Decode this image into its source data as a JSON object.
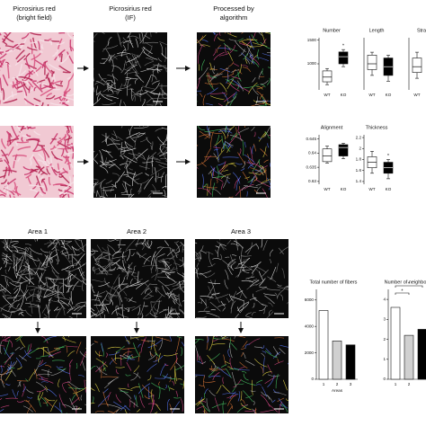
{
  "headers": [
    [
      "Picrosirius red",
      "(bright field)"
    ],
    [
      "Picrosirius red",
      "(IF)"
    ],
    [
      "Processed by",
      "algorithm"
    ]
  ],
  "areas": [
    "Area 1",
    "Area 2",
    "Area 3"
  ],
  "chart_data": [
    {
      "type": "box",
      "title": "Number",
      "categories": [
        "WT",
        "KO"
      ],
      "colors": [
        "#ffffff",
        "#000000"
      ],
      "boxes": [
        {
          "min": 560,
          "q1": 620,
          "median": 720,
          "q3": 850,
          "max": 900
        },
        {
          "min": 940,
          "q1": 1000,
          "median": 1150,
          "q3": 1250,
          "max": 1300
        }
      ],
      "ylim": [
        450,
        1550
      ],
      "yticks": [
        1000,
        1500
      ],
      "annotation": "*"
    },
    {
      "type": "box",
      "title": "Length",
      "categories": [
        "WT",
        "KO"
      ],
      "colors": [
        "#ffffff",
        "#000000"
      ],
      "boxes": [
        {
          "min": 15,
          "q1": 17,
          "median": 19,
          "q3": 22,
          "max": 23
        },
        {
          "min": 13,
          "q1": 15,
          "median": 18,
          "q3": 21,
          "max": 22
        }
      ],
      "ylim": [
        10,
        28
      ]
    },
    {
      "type": "box",
      "title": "Stra",
      "categories": [
        "WT"
      ],
      "colors": [
        "#ffffff"
      ],
      "boxes": [
        {
          "min": 14,
          "q1": 16,
          "median": 18,
          "q3": 21,
          "max": 23
        }
      ],
      "ylim": [
        10,
        28
      ]
    },
    {
      "type": "box",
      "title": "Alignment",
      "categories": [
        "WT",
        "KO"
      ],
      "colors": [
        "#ffffff",
        "#000000"
      ],
      "boxes": [
        {
          "min": 0.6365,
          "q1": 0.637,
          "median": 0.639,
          "q3": 0.6415,
          "max": 0.6425
        },
        {
          "min": 0.638,
          "q1": 0.639,
          "median": 0.642,
          "q3": 0.643,
          "max": 0.6435
        }
      ],
      "ylim": [
        0.629,
        0.6465
      ],
      "yticks": [
        0.63,
        0.635,
        0.64,
        0.645
      ]
    },
    {
      "type": "box",
      "title": "Thickness",
      "categories": [
        "WT",
        "KO"
      ],
      "colors": [
        "#ffffff",
        "#000000"
      ],
      "boxes": [
        {
          "min": 1.55,
          "q1": 1.65,
          "median": 1.75,
          "q3": 1.85,
          "max": 1.95
        },
        {
          "min": 1.45,
          "q1": 1.55,
          "median": 1.65,
          "q3": 1.75,
          "max": 1.8
        }
      ],
      "ylim": [
        1.35,
        2.25
      ],
      "yticks": [
        1.4,
        1.6,
        1.8,
        2.0,
        2.2
      ],
      "annotation": "*"
    },
    {
      "type": "bar",
      "title": "Total number of fibers",
      "x_label": "Areas",
      "categories": [
        "1",
        "2",
        "3"
      ],
      "values": [
        5200,
        2900,
        2600
      ],
      "colors": [
        "#ffffff",
        "#d0d0d0",
        "#000000"
      ],
      "ylim": [
        0,
        6800
      ],
      "yticks": [
        0,
        2000,
        4000,
        6000
      ]
    },
    {
      "type": "bar",
      "title": "Number of neighbo",
      "categories": [
        "1",
        "2",
        null
      ],
      "values": [
        3.6,
        2.2,
        2.5
      ],
      "colors": [
        "#ffffff",
        "#d0d0d0",
        "#000000"
      ],
      "ylim": [
        0,
        4.5
      ],
      "yticks": [
        0,
        1,
        2,
        3,
        4
      ],
      "annotations": [
        "*",
        "*"
      ]
    }
  ]
}
